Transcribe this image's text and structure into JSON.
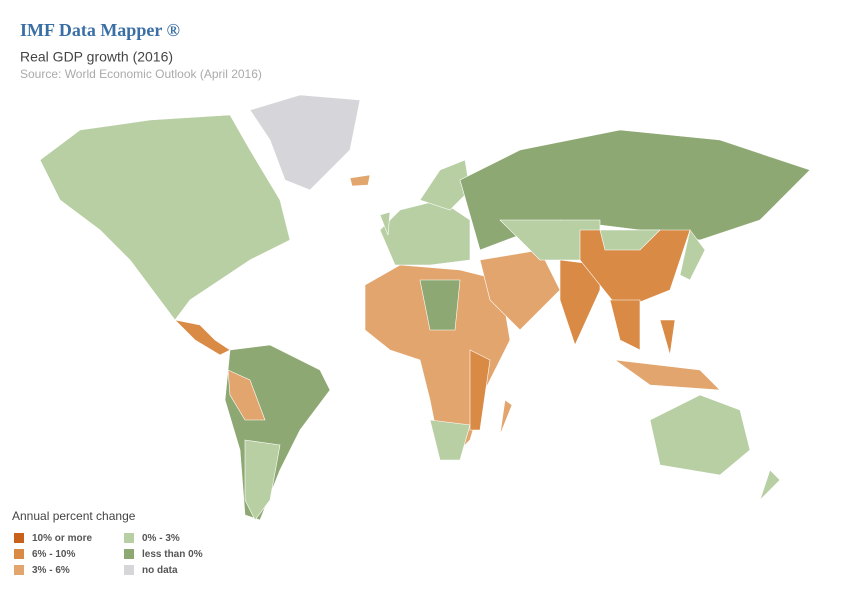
{
  "header": {
    "title": "IMF Data Mapper ®",
    "subtitle": "Real GDP growth (2016)",
    "source": "Source: World Economic Outlook (April 2016)"
  },
  "legend": {
    "title": "Annual percent change",
    "items": [
      {
        "label": "10% or more",
        "color": "#c8621a"
      },
      {
        "label": "6% - 10%",
        "color": "#d98a45"
      },
      {
        "label": "3% - 6%",
        "color": "#e3a56e"
      },
      {
        "label": "0% - 3%",
        "color": "#b8cfa4"
      },
      {
        "label": "less than 0%",
        "color": "#8ea873"
      },
      {
        "label": "no data",
        "color": "#d6d6da"
      }
    ]
  }
}
